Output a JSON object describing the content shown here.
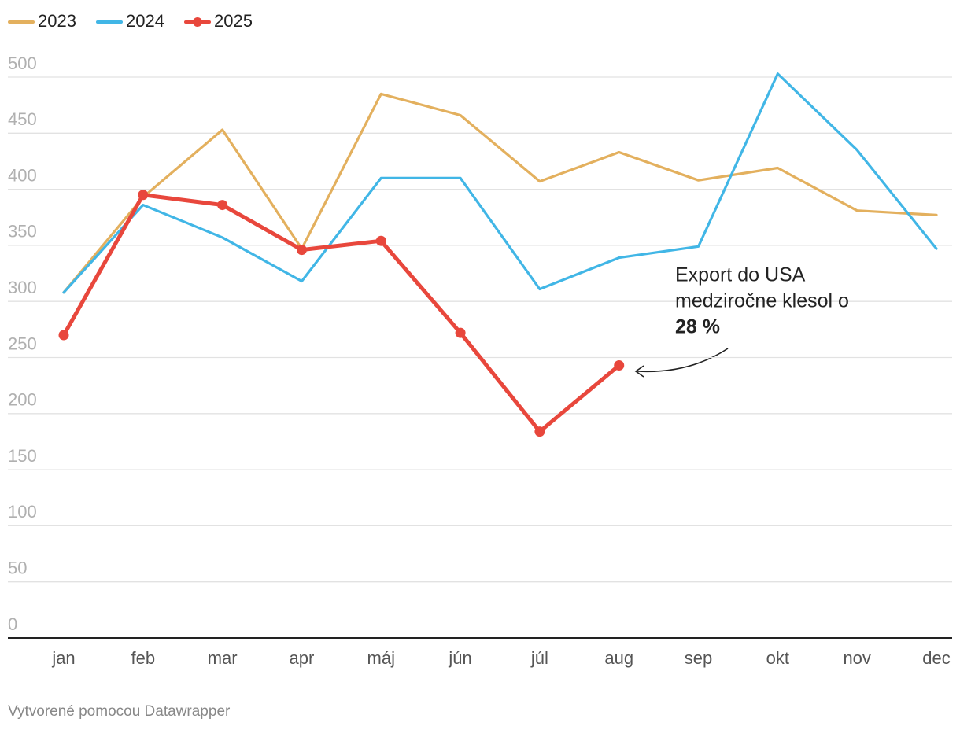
{
  "chart_data": {
    "type": "line",
    "categories": [
      "jan",
      "feb",
      "mar",
      "apr",
      "máj",
      "jún",
      "júl",
      "aug",
      "sep",
      "okt",
      "nov",
      "dec"
    ],
    "series": [
      {
        "name": "2023",
        "color": "#e3b05e",
        "markers": false,
        "values": [
          308,
          393,
          453,
          347,
          485,
          466,
          407,
          433,
          408,
          419,
          381,
          377
        ]
      },
      {
        "name": "2024",
        "color": "#41b6e6",
        "markers": false,
        "values": [
          308,
          386,
          357,
          318,
          410,
          410,
          311,
          339,
          349,
          503,
          435,
          347
        ]
      },
      {
        "name": "2025",
        "color": "#e8473c",
        "markers": true,
        "values": [
          270,
          395,
          386,
          346,
          354,
          272,
          184,
          243,
          null,
          null,
          null,
          null
        ]
      }
    ],
    "ylim": [
      0,
      500
    ],
    "yticks": [
      0,
      50,
      100,
      150,
      200,
      250,
      300,
      350,
      400,
      450,
      500
    ],
    "grid": true,
    "legend": "top-left",
    "annotation": [
      "Export do USA",
      "medziročne klesol o",
      "28 %"
    ],
    "credit": "Vytvorené pomocou Datawrapper"
  }
}
